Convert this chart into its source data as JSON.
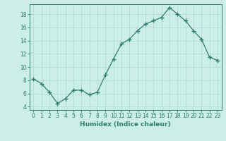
{
  "x": [
    0,
    1,
    2,
    3,
    4,
    5,
    6,
    7,
    8,
    9,
    10,
    11,
    12,
    13,
    14,
    15,
    16,
    17,
    18,
    19,
    20,
    21,
    22,
    23
  ],
  "y": [
    8.2,
    7.5,
    6.2,
    4.5,
    5.2,
    6.5,
    6.5,
    5.8,
    6.2,
    8.8,
    11.2,
    13.5,
    14.2,
    15.5,
    16.5,
    17.0,
    17.5,
    19.0,
    18.0,
    17.0,
    15.5,
    14.2,
    11.5,
    11.0
  ],
  "xlabel": "Humidex (Indice chaleur)",
  "xlim": [
    -0.5,
    23.5
  ],
  "ylim": [
    3.5,
    19.5
  ],
  "yticks": [
    4,
    6,
    8,
    10,
    12,
    14,
    16,
    18
  ],
  "xticks": [
    0,
    1,
    2,
    3,
    4,
    5,
    6,
    7,
    8,
    9,
    10,
    11,
    12,
    13,
    14,
    15,
    16,
    17,
    18,
    19,
    20,
    21,
    22,
    23
  ],
  "line_color": "#2e7d6e",
  "bg_color": "#cceee8",
  "grid_color": "#b0d8d0",
  "axis_color": "#2e7d6e",
  "tick_fontsize": 5.5,
  "xlabel_fontsize": 6.5
}
